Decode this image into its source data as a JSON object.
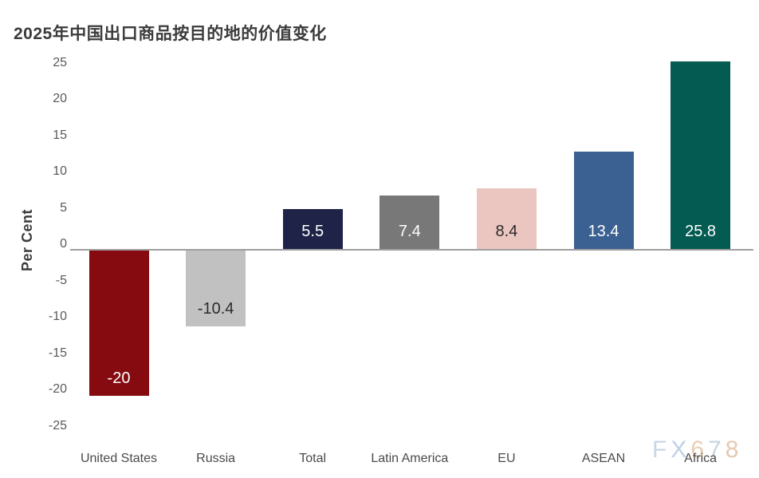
{
  "title": "2025年中国出口商品按目的地的价值变化",
  "watermark": {
    "text": "FX678",
    "char_colors": [
      "#c8d5e7",
      "#b9cfe9",
      "#e9cbae",
      "#c6d2df",
      "#e5c7a9"
    ]
  },
  "chart_data": {
    "type": "bar",
    "title": "2025年中国出口商品按目的地的价值变化",
    "ylabel": "Per Cent",
    "xlabel": "",
    "categories": [
      "United States",
      "Russia",
      "Total",
      "Latin America",
      "EU",
      "ASEAN",
      "Africa"
    ],
    "values": [
      -20,
      -10.4,
      5.5,
      7.4,
      8.4,
      13.4,
      25.8
    ],
    "value_labels": [
      "-20",
      "-10.4",
      "5.5",
      "7.4",
      "8.4",
      "13.4",
      "25.8"
    ],
    "bar_colors": [
      "#850b10",
      "#c1c1c1",
      "#1e2347",
      "#787878",
      "#ebc6c1",
      "#3a6191",
      "#035b52"
    ],
    "value_label_colors": [
      "#ffffff",
      "#2b2b2b",
      "#ffffff",
      "#ffffff",
      "#2b2b2b",
      "#ffffff",
      "#ffffff"
    ],
    "yticks": [
      25,
      20,
      15,
      10,
      5,
      0,
      -5,
      -10,
      -15,
      -20,
      -25
    ],
    "ylim": [
      -25,
      25
    ],
    "grid": false,
    "legend": false,
    "axis_line_color": "#9e9e9e"
  }
}
